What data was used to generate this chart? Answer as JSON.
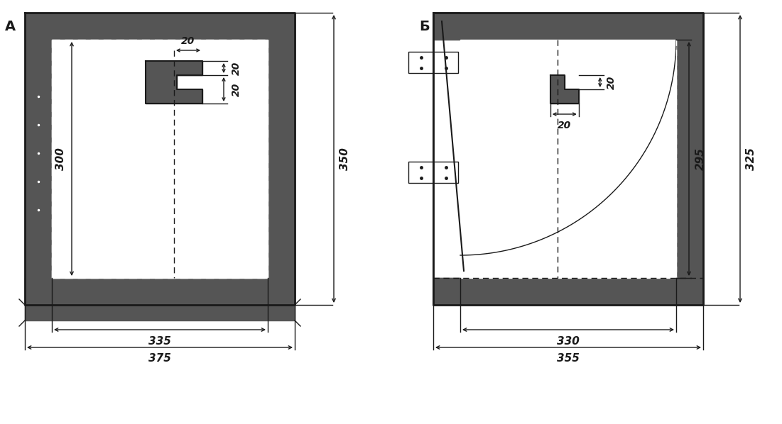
{
  "fig_width": 11.01,
  "fig_height": 5.98,
  "bg_color": "#ffffff",
  "line_color": "#1a1a1a",
  "dark_fill": "#555555",
  "label_A": "A",
  "label_B": "Б",
  "dim_20_1": "20",
  "dim_20_2": "20",
  "dim_20_3": "20",
  "dim_300": "300",
  "dim_350": "350",
  "dim_335": "335",
  "dim_375": "375",
  "dim_20_b1": "20",
  "dim_20_b2": "20",
  "dim_295": "295",
  "dim_325": "325",
  "dim_330": "330",
  "dim_355": "355",
  "A_ox1": 35,
  "A_oy1": 18,
  "A_ox2": 415,
  "A_oy2": 430,
  "A_border": 38,
  "A_sill_extra": 22,
  "B_ox1": 610,
  "B_oy1": 18,
  "B_ox2": 990,
  "B_oy2": 430,
  "B_border": 38
}
